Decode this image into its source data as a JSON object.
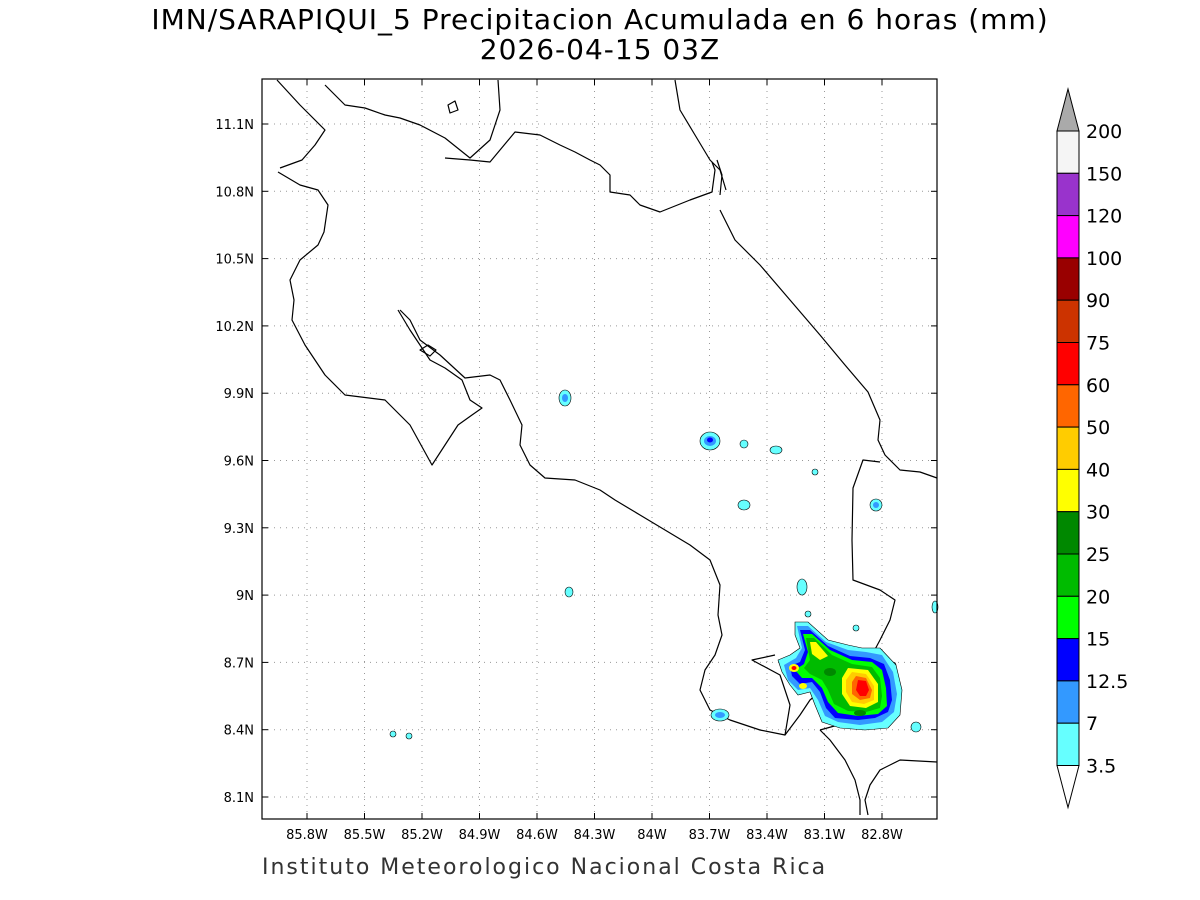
{
  "title_line1": "IMN/SARAPIQUI_5 Precipitacion Acumulada en 6 horas (mm)",
  "title_line2": "2026-04-15 03Z",
  "footer": "Instituto Meteorologico Nacional Costa Rica",
  "map": {
    "lon_range": [
      -86.0,
      -83.0
    ],
    "lat_range": [
      8.0,
      11.35
    ],
    "lon_ticks": [
      "85.8W",
      "85.5W",
      "85.2W",
      "84.9W",
      "84.6W",
      "84.3W",
      "84W",
      "83.7W",
      "83.4W",
      "83.1W",
      "82.8W"
    ],
    "lat_ticks": [
      "11.1N",
      "10.8N",
      "10.5N",
      "10.2N",
      "9.9N",
      "9.6N",
      "9.3N",
      "9N",
      "8.7N",
      "8.4N",
      "8.1N"
    ],
    "grid": "dotted"
  },
  "colorbar": {
    "labels": [
      "200",
      "150",
      "120",
      "100",
      "90",
      "75",
      "60",
      "50",
      "40",
      "30",
      "25",
      "20",
      "15",
      "12.5",
      "7",
      "3.5"
    ],
    "colors": [
      "#f5f5f5",
      "#9933cc",
      "#ff00ff",
      "#990000",
      "#cc3300",
      "#ff0000",
      "#ff6600",
      "#ffcc00",
      "#ffff00",
      "#008800",
      "#00bb00",
      "#00ff00",
      "#0000ff",
      "#3399ff",
      "#66ffff"
    ],
    "top_arrow_color": "#aaaaaa",
    "bottom_arrow_color": "#ffffff"
  }
}
